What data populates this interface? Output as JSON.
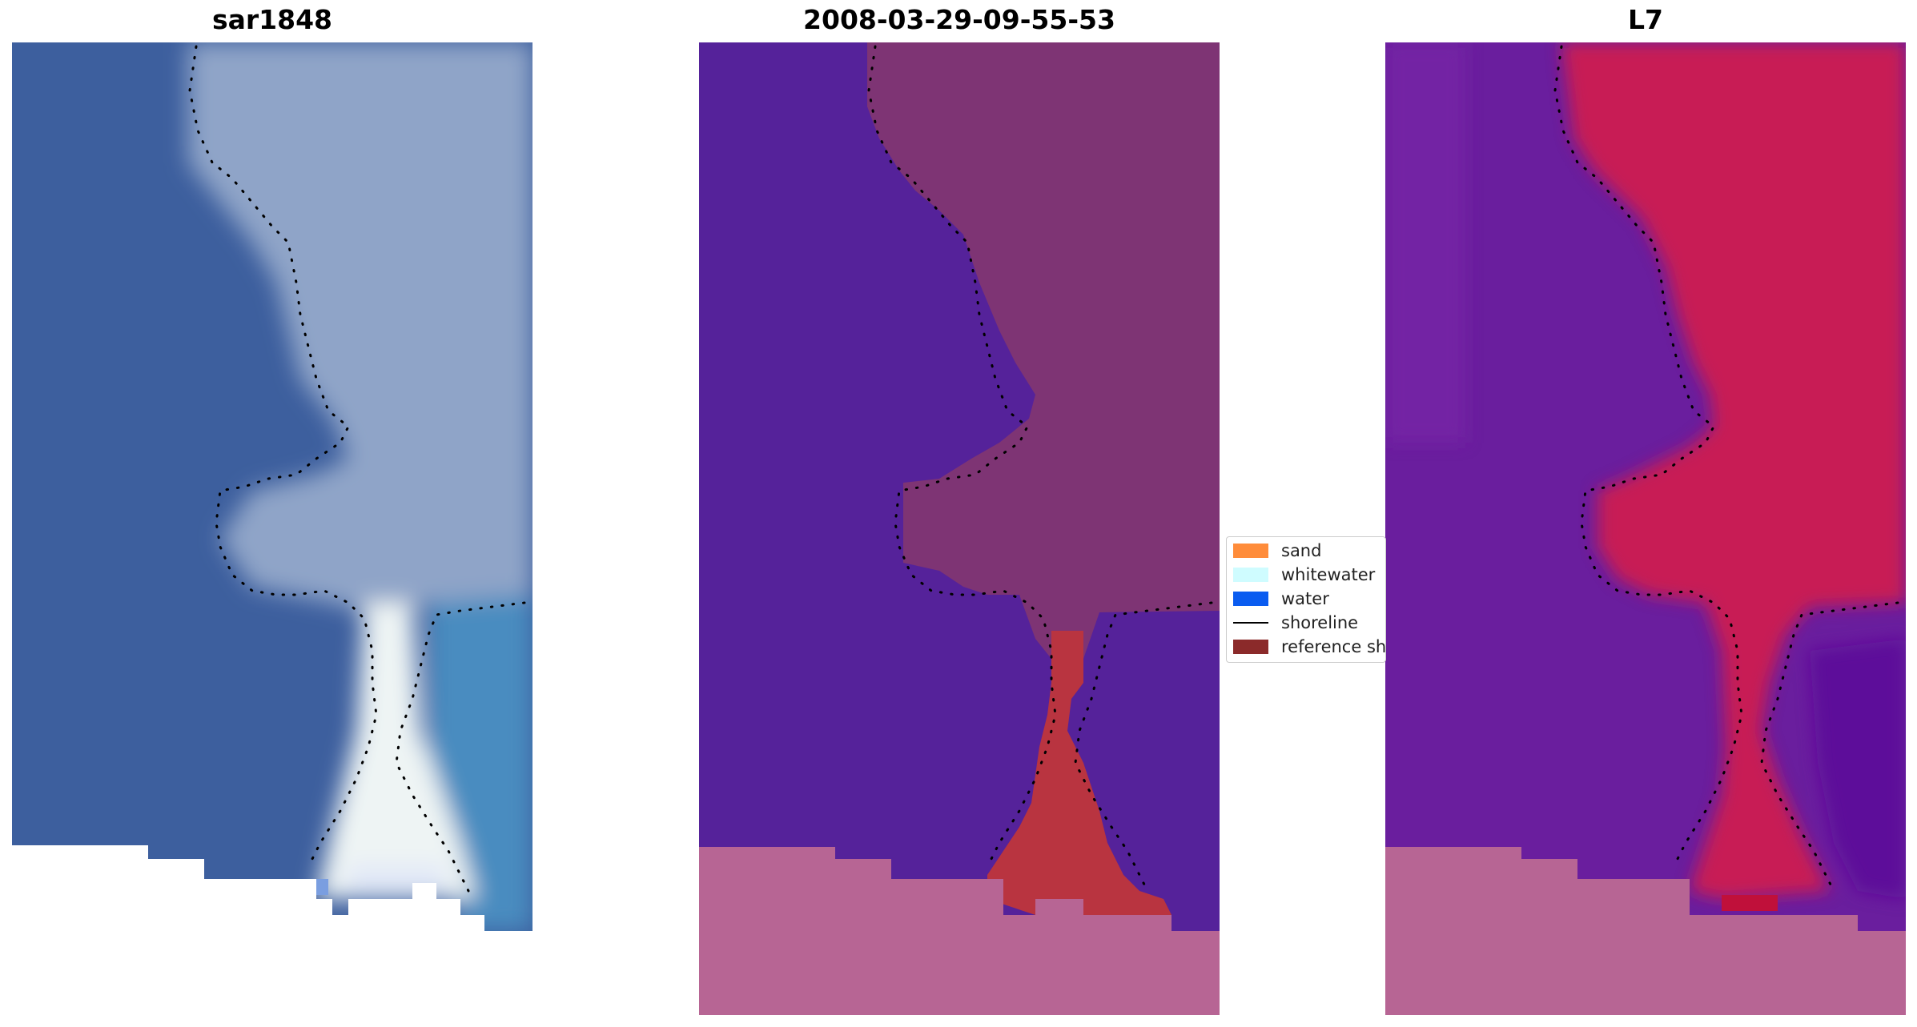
{
  "panels": [
    {
      "title": "sar1848",
      "kind": "rgb"
    },
    {
      "title": "2008-03-29-09-55-53",
      "kind": "classified"
    },
    {
      "title": "L7",
      "kind": "mndwi"
    }
  ],
  "legend": {
    "items": [
      {
        "label": "sand",
        "color": "#ff8c3a",
        "type": "patch"
      },
      {
        "label": "whitewater",
        "color": "#cffcff",
        "type": "patch"
      },
      {
        "label": "water",
        "color": "#0a5cf0",
        "type": "patch"
      },
      {
        "label": "shoreline",
        "color": "#000000",
        "type": "line"
      },
      {
        "label": "reference shoreline buffer",
        "color": "#8b2a2a",
        "type": "patch"
      }
    ]
  },
  "colors": {
    "rgb_water": "#3d5f9e",
    "rgb_land": "#8fa4c8",
    "rgb_whitewater": "#eef4f4",
    "rgb_nearshore": "#4a8cc0",
    "class_water": "#55229a",
    "class_land": "#7e3474",
    "class_buffer": "#b93440",
    "class_nodata": "#b76594",
    "index_water": "#6a1e9e",
    "index_land": "#c81e54",
    "index_nodata": "#b76594",
    "shoreline": "#000000"
  }
}
